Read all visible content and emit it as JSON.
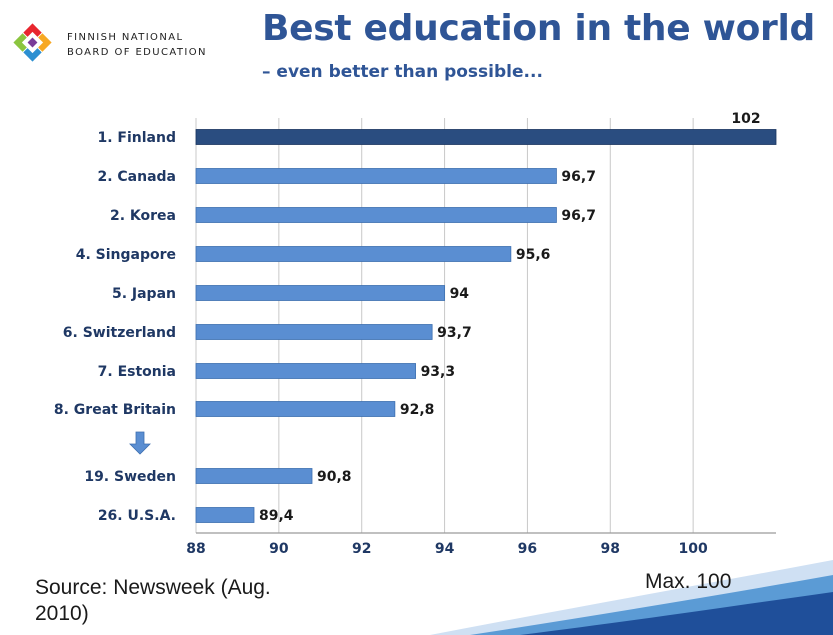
{
  "header": {
    "org_line1": "FINNISH NATIONAL",
    "org_line2": "BOARD OF EDUCATION",
    "title": "Best education in the world",
    "subtitle": "– even better than possible..."
  },
  "footer": {
    "source": "Source: Newsweek (Aug. 2010)",
    "note": "Max. 100"
  },
  "colors": {
    "highlight_bar": "#2a4d80",
    "bar": "#5a8ed2",
    "title": "#2f5596",
    "label": "#1f3864"
  },
  "chart_data": {
    "type": "bar",
    "orientation": "horizontal",
    "categories": [
      "1. Finland",
      "2. Canada",
      "2. Korea",
      "4. Singapore",
      "5. Japan",
      "6. Switzerland",
      "7. Estonia",
      "8. Great Britain",
      "19. Sweden",
      "26. U.S.A."
    ],
    "values": [
      102,
      96.7,
      96.7,
      95.6,
      94,
      93.7,
      93.3,
      92.8,
      90.8,
      89.4
    ],
    "value_labels": [
      "102",
      "96,7",
      "96,7",
      "95,6",
      "94",
      "93,7",
      "93,3",
      "92,8",
      "90,8",
      "89,4"
    ],
    "highlight_index": 0,
    "gap_marker": "down-arrow between 8. Great Britain and 19. Sweden",
    "xlim": [
      88,
      102
    ],
    "xticks": [
      88,
      90,
      92,
      94,
      96,
      98,
      100
    ],
    "grid": "vertical",
    "xlabel": "",
    "ylabel": ""
  }
}
